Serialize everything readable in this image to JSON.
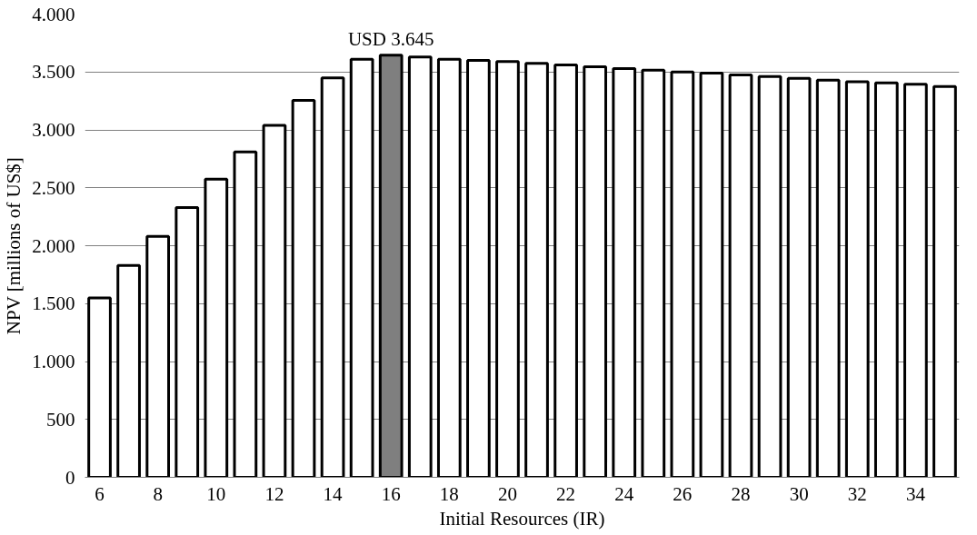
{
  "chart_data": {
    "type": "bar",
    "xlabel": "Initial Resources (IR)",
    "ylabel": "NPV [millions of US$]",
    "categories": [
      "6",
      null,
      "8",
      null,
      "10",
      null,
      "12",
      null,
      "14",
      null,
      "16",
      null,
      "18",
      null,
      "20",
      null,
      "22",
      null,
      "24",
      null,
      "26",
      null,
      "28",
      null,
      "30",
      null,
      "32",
      null,
      "34",
      null
    ],
    "values": [
      1550,
      1830,
      2080,
      2330,
      2575,
      2810,
      3040,
      3255,
      3450,
      3610,
      3645,
      3630,
      3610,
      3600,
      3590,
      3575,
      3560,
      3545,
      3530,
      3515,
      3500,
      3490,
      3475,
      3460,
      3445,
      3430,
      3415,
      3405,
      3395,
      3375
    ],
    "colors": [
      "#ffffff",
      "#ffffff",
      "#ffffff",
      "#ffffff",
      "#ffffff",
      "#ffffff",
      "#ffffff",
      "#ffffff",
      "#ffffff",
      "#ffffff",
      "#7f7f7f",
      "#ffffff",
      "#ffffff",
      "#ffffff",
      "#ffffff",
      "#ffffff",
      "#ffffff",
      "#ffffff",
      "#ffffff",
      "#ffffff",
      "#ffffff",
      "#ffffff",
      "#ffffff",
      "#ffffff",
      "#ffffff",
      "#ffffff",
      "#ffffff",
      "#ffffff",
      "#ffffff",
      "#ffffff"
    ],
    "ylim": [
      0,
      4000
    ],
    "yticks": [
      0,
      500,
      {
        "value": 1000,
        "label": "1.000"
      },
      {
        "value": 1500,
        "label": "1.500"
      },
      {
        "value": 2000,
        "label": "2.000"
      },
      {
        "value": 2500,
        "label": "2.500"
      },
      {
        "value": 3000,
        "label": "3.000"
      },
      {
        "value": 3500,
        "label": "3.500"
      },
      {
        "value": 4000,
        "label": "4.000"
      }
    ],
    "grid": "y",
    "annotations": [
      {
        "text": "USD 3.645",
        "x": "16",
        "y": 3645
      }
    ]
  }
}
